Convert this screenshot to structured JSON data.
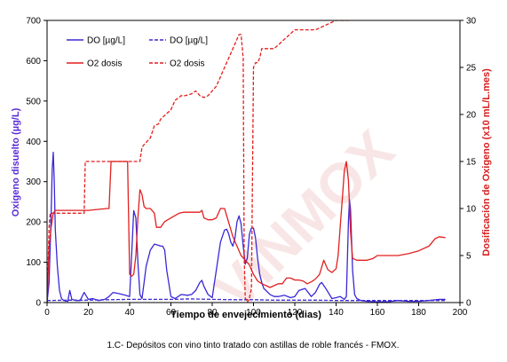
{
  "chart_data": {
    "type": "line",
    "title": "",
    "xlabel": "Tiempo de envejecimiento (dias)",
    "ylabel": "Oxigeno disuelto (µg/L)",
    "y2label": "Dosificación de  Oxigeno  (x10 mL/L.mes)",
    "caption": "1.C- Depósitos con vino tinto tratado con astillas de roble francés - FMOX.",
    "watermark": "VINMOX",
    "xlim": [
      0,
      200
    ],
    "ylim": [
      0,
      700
    ],
    "y2lim": [
      0,
      30
    ],
    "x_ticks": [
      "0",
      "20",
      "40",
      "60",
      "80",
      "100",
      "120",
      "140",
      "160",
      "180",
      "200"
    ],
    "y_ticks": [
      "0",
      "100",
      "200",
      "300",
      "400",
      "500",
      "600",
      "700"
    ],
    "y2_ticks": [
      "0",
      "5",
      "10",
      "15",
      "20",
      "25",
      "30"
    ],
    "grid": false,
    "legend_position": "top-left",
    "colors": {
      "do": "#3a28d6",
      "o2": "#e21f1f",
      "left_axis": "#5b2bd8",
      "right_axis": "#d81e1e"
    },
    "series": [
      {
        "name": "DO [µg/L]",
        "axis": "left",
        "style": "solid",
        "color": "#3a28d6",
        "x": [
          0,
          1,
          2,
          2.5,
          3,
          3.5,
          4,
          5,
          6,
          7,
          8,
          10,
          11,
          12,
          14,
          16,
          18,
          20,
          22,
          25,
          28,
          30,
          32,
          35,
          38,
          40,
          41,
          42,
          43,
          44,
          45,
          46,
          47,
          48,
          50,
          52,
          54,
          55,
          56,
          57,
          58,
          60,
          62,
          65,
          68,
          70,
          72,
          74,
          75,
          76,
          78,
          80,
          82,
          84,
          86,
          87,
          88,
          89,
          90,
          91,
          92,
          93,
          94,
          95,
          96,
          97,
          98,
          99,
          100,
          101,
          102,
          103,
          104,
          105,
          106,
          107,
          108,
          110,
          112,
          115,
          118,
          120,
          122,
          125,
          128,
          130,
          132,
          133,
          135,
          138,
          140,
          142,
          144,
          145,
          146,
          146.5,
          147,
          148,
          149,
          150,
          152,
          155,
          160,
          165,
          170,
          175,
          180,
          185,
          190,
          193
        ],
        "y": [
          0,
          50,
          220,
          330,
          373,
          300,
          180,
          90,
          30,
          10,
          5,
          3,
          30,
          8,
          5,
          5,
          25,
          8,
          10,
          5,
          8,
          15,
          25,
          22,
          18,
          15,
          120,
          228,
          210,
          100,
          20,
          10,
          50,
          90,
          130,
          145,
          142,
          140,
          140,
          130,
          80,
          15,
          10,
          20,
          18,
          20,
          30,
          50,
          55,
          40,
          20,
          12,
          80,
          150,
          180,
          182,
          170,
          150,
          140,
          160,
          200,
          215,
          195,
          140,
          95,
          110,
          170,
          185,
          185,
          160,
          110,
          70,
          50,
          35,
          30,
          25,
          20,
          15,
          15,
          18,
          12,
          15,
          30,
          35,
          15,
          25,
          45,
          50,
          35,
          10,
          12,
          15,
          8,
          15,
          200,
          255,
          230,
          80,
          20,
          10,
          5,
          3,
          2,
          2,
          5,
          3,
          3,
          5,
          8,
          8
        ]
      },
      {
        "name": "DO [µg/L]",
        "axis": "left",
        "style": "dashed",
        "color": "#3a28d6",
        "x": [
          0,
          10,
          20,
          30,
          40,
          50,
          60,
          70,
          80,
          90,
          100,
          110,
          120,
          130,
          140,
          150,
          160,
          170,
          180,
          190,
          193
        ],
        "y": [
          5,
          6,
          6,
          7,
          8,
          8,
          8,
          9,
          8,
          7,
          7,
          6,
          6,
          6,
          5,
          5,
          5,
          5,
          5,
          5,
          5
        ]
      },
      {
        "name": "O2 dosis",
        "axis": "right",
        "style": "solid",
        "color": "#e21f1f",
        "x": [
          0,
          0.5,
          1,
          2,
          3,
          4,
          10,
          20,
          29,
          30,
          31,
          35,
          39,
          40,
          41,
          42,
          43,
          44,
          45,
          46,
          47,
          48,
          50,
          52,
          53,
          55,
          57,
          60,
          64,
          66,
          68,
          70,
          72,
          74,
          75,
          76,
          78,
          80,
          82,
          84,
          86,
          88,
          90,
          92,
          94,
          96,
          98,
          100,
          102,
          104,
          106,
          108,
          110,
          112,
          114,
          116,
          118,
          120,
          122,
          124,
          126,
          128,
          130,
          132,
          134,
          136,
          138,
          140,
          141,
          142,
          143,
          144,
          145,
          146,
          147,
          148,
          150,
          152,
          155,
          158,
          160,
          162,
          165,
          170,
          175,
          180,
          185,
          188,
          190,
          193
        ],
        "y": [
          0,
          3,
          6,
          8,
          9.5,
          9.8,
          9.8,
          9.8,
          10,
          10,
          15,
          15,
          15,
          3,
          2.8,
          3,
          5,
          9,
          12,
          11.5,
          10.2,
          10,
          10,
          9.5,
          8,
          8,
          8.6,
          9,
          9.5,
          9.6,
          9.6,
          9.6,
          9.6,
          9.6,
          9.8,
          9,
          8.8,
          8.8,
          9,
          10,
          10,
          8.5,
          7,
          6,
          5,
          4.5,
          4,
          3,
          2.3,
          2,
          1.8,
          1.6,
          1.8,
          2,
          2,
          2.6,
          2.6,
          2.4,
          2.4,
          2.3,
          2,
          2.2,
          2.5,
          3,
          4.5,
          3.5,
          3.2,
          3.6,
          5,
          8,
          11,
          14,
          15,
          13,
          7.5,
          4.7,
          4.5,
          4.5,
          4.5,
          4.7,
          5,
          5,
          5,
          5,
          5.2,
          5.5,
          6,
          6.8,
          7,
          6.9
        ]
      },
      {
        "name": "O2 dosis",
        "axis": "right",
        "style": "dashed",
        "color": "#e21f1f",
        "x": [
          0,
          0.5,
          1,
          1.5,
          2,
          3,
          16,
          18,
          18.5,
          20,
          30,
          35,
          36,
          37,
          38,
          39,
          40,
          41,
          42,
          45,
          46,
          47,
          50,
          52,
          54,
          55,
          60,
          62,
          65,
          67,
          70,
          72,
          74,
          76,
          78,
          80,
          82,
          84,
          86,
          88,
          90,
          92,
          93,
          94,
          95,
          95.5,
          96,
          97,
          98,
          99,
          100,
          101,
          102,
          103,
          104,
          105,
          107,
          110,
          115,
          120,
          125,
          130,
          135,
          140,
          143,
          145,
          146,
          147,
          148
        ],
        "y": [
          0,
          4,
          8,
          9.5,
          9.5,
          9.5,
          9.5,
          9.5,
          15,
          15,
          15,
          15,
          15,
          15,
          15,
          15,
          15,
          15,
          15,
          15,
          16.5,
          16.8,
          17.5,
          18.8,
          19,
          19.5,
          20.5,
          21.5,
          22,
          22,
          22.2,
          22.5,
          22,
          21.8,
          22,
          22.5,
          23,
          24,
          25,
          26,
          27,
          28,
          28.5,
          28.5,
          26,
          5,
          0.5,
          0,
          0.5,
          1.5,
          25,
          25.5,
          25.5,
          26,
          27,
          27,
          27,
          27,
          28,
          29,
          29,
          29,
          29.5,
          30,
          30,
          30,
          30,
          30.5,
          31
        ]
      }
    ]
  }
}
